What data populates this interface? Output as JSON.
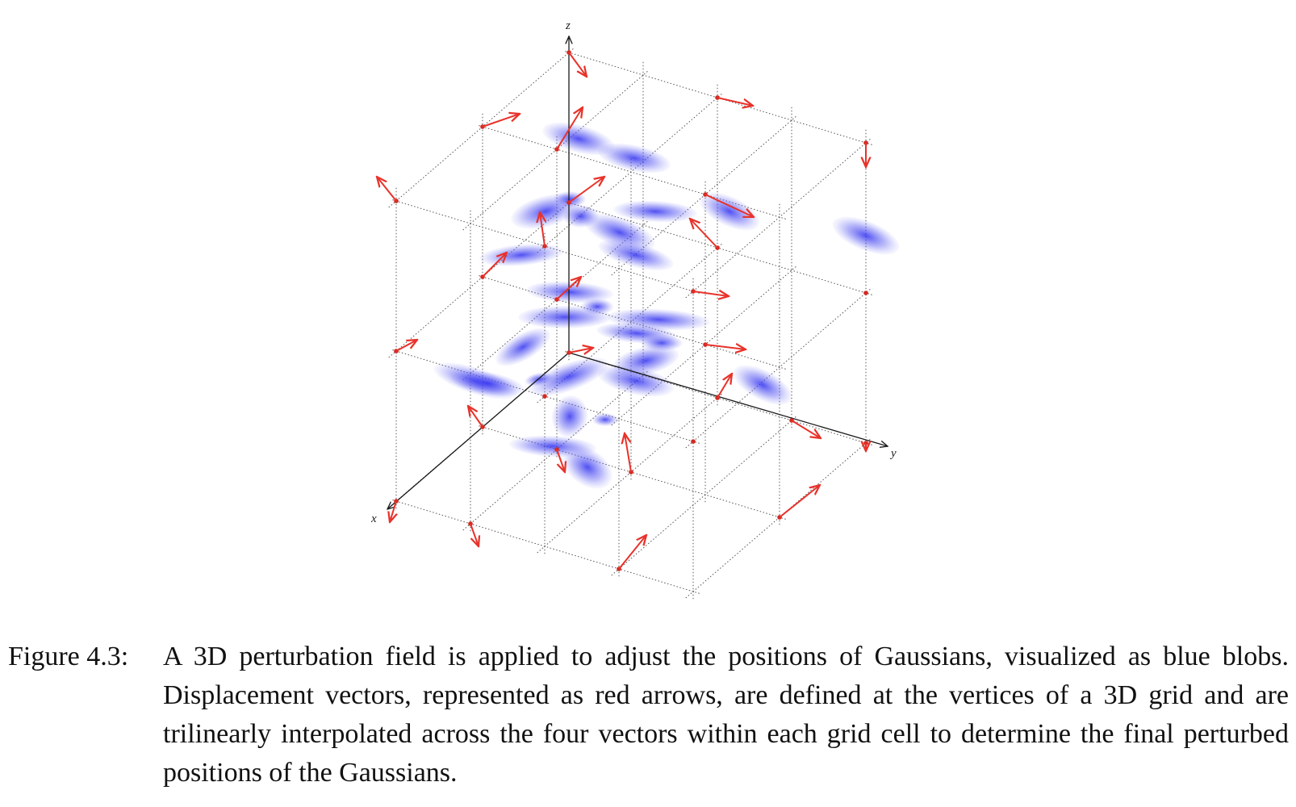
{
  "figure": {
    "axes": {
      "x_label": "x",
      "y_label": "y",
      "z_label": "z"
    },
    "colors": {
      "grid": "#555555",
      "axis": "#1a1a1a",
      "arrow": "#e8322a",
      "vertex": "#d42a22",
      "blob": "#3a3aee"
    },
    "grid_size": [
      3,
      4,
      3
    ],
    "arrow_count": 42,
    "blob_count": 29
  },
  "caption": {
    "label": "Figure 4.3:",
    "text": "A 3D perturbation field is applied to adjust the positions of Gaussians, visualized as blue blobs. Displacement vectors, represented as red arrows, are defined at the vertices of a 3D grid and are trilinearly interpolated across the four vectors within each grid cell to determine the final perturbed positions of the Gaussians."
  }
}
